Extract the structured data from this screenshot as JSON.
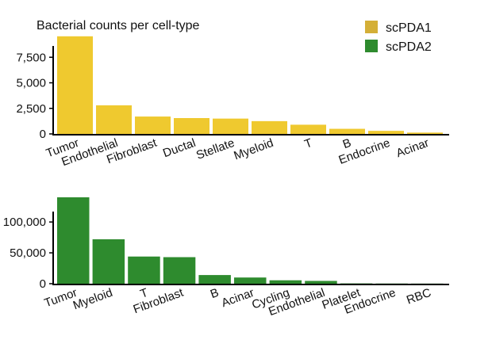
{
  "chart_data": [
    {
      "type": "bar",
      "title": "Bacterial counts per cell-type",
      "series_name": "scPDA1",
      "color": "#EFC92F",
      "categories": [
        "Tumor",
        "Endothelial",
        "Fibroblast",
        "Ductal",
        "Stellate",
        "Myeloid",
        "T",
        "B",
        "Endocrine",
        "Acinar"
      ],
      "values": [
        9550,
        2800,
        1700,
        1550,
        1500,
        1250,
        900,
        500,
        300,
        130
      ],
      "ylim": [
        0,
        10000
      ],
      "yticks": [
        0,
        2500,
        5000,
        7500
      ],
      "ytick_labels": [
        "0",
        "2,500",
        "5,000",
        "7,500"
      ],
      "grid": false
    },
    {
      "type": "bar",
      "title": "",
      "series_name": "scPDA2",
      "color": "#2E8B2E",
      "categories": [
        "Tumor",
        "Myeloid",
        "T",
        "Fibroblast",
        "B",
        "Acinar",
        "Cycling",
        "Endothelial",
        "Platelet",
        "Endocrine",
        "RBC"
      ],
      "values": [
        140000,
        72000,
        44000,
        43000,
        14000,
        10000,
        5500,
        4500,
        500,
        300,
        200
      ],
      "ylim": [
        0,
        140000
      ],
      "yticks": [
        0,
        50000,
        100000
      ],
      "ytick_labels": [
        "0",
        "50,000",
        "100,000"
      ],
      "grid": false
    }
  ],
  "legend": {
    "position": "top-right",
    "entries": [
      {
        "label": "scPDA1",
        "color": "#D4AF37"
      },
      {
        "label": "scPDA2",
        "color": "#2E8B2E"
      }
    ]
  }
}
